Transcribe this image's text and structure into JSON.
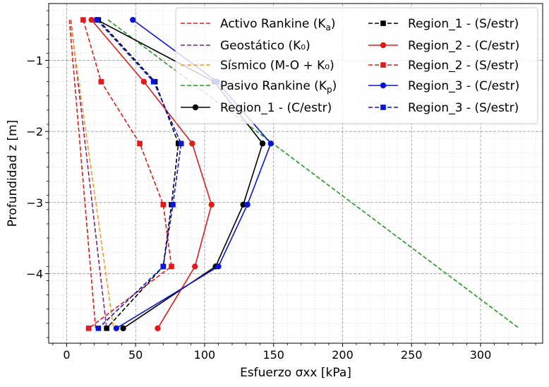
{
  "chart_data": {
    "type": "line",
    "title": "",
    "xlabel": "Esfuerzo σxx [kPa]",
    "ylabel": "Profundidad z [m]",
    "xlim": [
      -13,
      345
    ],
    "ylim": [
      -4.98,
      -0.2
    ],
    "xticks": [
      {
        "value": 0,
        "label": "0"
      },
      {
        "value": 50,
        "label": "50"
      },
      {
        "value": 100,
        "label": "100"
      },
      {
        "value": 150,
        "label": "150"
      },
      {
        "value": 200,
        "label": "200"
      },
      {
        "value": 250,
        "label": "250"
      },
      {
        "value": 300,
        "label": "300"
      }
    ],
    "yticks": [
      {
        "value": -1,
        "label": "−1"
      },
      {
        "value": -2,
        "label": "−2"
      },
      {
        "value": -3,
        "label": "−3"
      },
      {
        "value": -4,
        "label": "−4"
      }
    ],
    "grid": true,
    "legend_position": "top-right",
    "series": [
      {
        "name": "Activo Rankine (K_a)",
        "label_main": "Activo Rankine (K",
        "label_sub": "a",
        "color": "#e01a1a",
        "style": "dashed",
        "marker": "none",
        "points": [
          [
            2,
            -0.43
          ],
          [
            21,
            -4.77
          ]
        ]
      },
      {
        "name": "Geostático (K₀)",
        "label_main": "Geostático (K₀)",
        "label_sub": "",
        "color": "#7b1f8c",
        "style": "dashed",
        "marker": "none",
        "points": [
          [
            3,
            -0.43
          ],
          [
            29,
            -4.77
          ]
        ]
      },
      {
        "name": "Sísmico (M-O + K₀)",
        "label_main": "Sísmico (M-O + K₀)",
        "label_sub": "",
        "color": "#ff9a1a",
        "style": "dashed",
        "marker": "none",
        "points": [
          [
            2.5,
            -0.43
          ],
          [
            34,
            -4.77
          ]
        ]
      },
      {
        "name": "Pasivo Rankine (K_p)",
        "label_main": "Pasivo Rankine (K",
        "label_sub": "p",
        "color": "#1e9a1e",
        "style": "dashed",
        "marker": "none",
        "points": [
          [
            30,
            -0.43
          ],
          [
            328,
            -4.77
          ]
        ]
      },
      {
        "name": "Region_1 - (C/estr)",
        "label_main": "Region_1 - (C/estr)",
        "label_sub": "",
        "color": "#000000",
        "style": "solid",
        "marker": "circle",
        "points": [
          [
            22,
            -0.43
          ],
          [
            107,
            -1.3
          ],
          [
            142,
            -2.17
          ],
          [
            128,
            -3.03
          ],
          [
            108,
            -3.9
          ],
          [
            41,
            -4.77
          ]
        ]
      },
      {
        "name": "Region_1 - (S/estr)",
        "label_main": "Region_1 - (S/estr)",
        "label_sub": "",
        "color": "#000000",
        "style": "dashed",
        "marker": "square",
        "points": [
          [
            23,
            -0.43
          ],
          [
            64,
            -1.3
          ],
          [
            81,
            -2.17
          ],
          [
            76,
            -3.03
          ],
          [
            70,
            -3.9
          ],
          [
            29,
            -4.77
          ]
        ]
      },
      {
        "name": "Region_2 - (C/estr)",
        "label_main": "Region_2 - (C/estr)",
        "label_sub": "",
        "color": "#e01a1a",
        "style": "solid",
        "marker": "circle",
        "points": [
          [
            18,
            -0.43
          ],
          [
            56,
            -1.3
          ],
          [
            91,
            -2.17
          ],
          [
            105,
            -3.03
          ],
          [
            93,
            -3.9
          ],
          [
            66,
            -4.77
          ]
        ]
      },
      {
        "name": "Region_2 - (S/estr)",
        "label_main": "Region_2 - (S/estr)",
        "label_sub": "",
        "color": "#e01a1a",
        "style": "dashed",
        "marker": "square",
        "points": [
          [
            12,
            -0.43
          ],
          [
            25,
            -1.3
          ],
          [
            53,
            -2.17
          ],
          [
            70,
            -3.03
          ],
          [
            76,
            -3.9
          ],
          [
            16,
            -4.77
          ]
        ]
      },
      {
        "name": "Region_3 - (C/estr)",
        "label_main": "Region_3 - (C/estr)",
        "label_sub": "",
        "color": "#0a14d6",
        "style": "solid",
        "marker": "circle",
        "points": [
          [
            48,
            -0.43
          ],
          [
            109,
            -1.3
          ],
          [
            148,
            -2.17
          ],
          [
            131,
            -3.03
          ],
          [
            110,
            -3.9
          ],
          [
            36,
            -4.77
          ]
        ]
      },
      {
        "name": "Region_3 - (S/estr)",
        "label_main": "Region_3 - (S/estr)",
        "label_sub": "",
        "color": "#0a14d6",
        "style": "dashed",
        "marker": "square",
        "points": [
          [
            22,
            -0.43
          ],
          [
            63,
            -1.3
          ],
          [
            83,
            -2.17
          ],
          [
            77,
            -3.03
          ],
          [
            70,
            -3.9
          ],
          [
            23,
            -4.77
          ]
        ]
      }
    ]
  }
}
